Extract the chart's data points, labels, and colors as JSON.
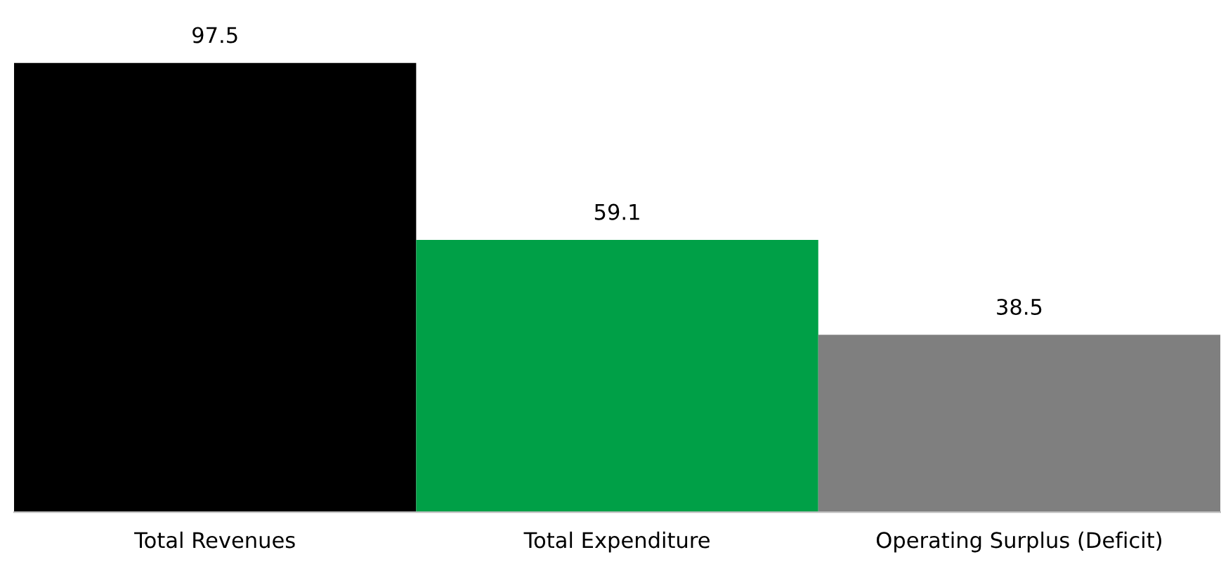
{
  "chart_data": {
    "type": "bar",
    "categories": [
      "Total Revenues",
      "Total Expenditure",
      "Operating Surplus (Deficit)"
    ],
    "values": [
      97.5,
      59.1,
      38.5
    ],
    "colors": [
      "#000000",
      "#00a047",
      "#7f7f7f"
    ],
    "data_labels": true,
    "grid": false,
    "legend": false
  }
}
